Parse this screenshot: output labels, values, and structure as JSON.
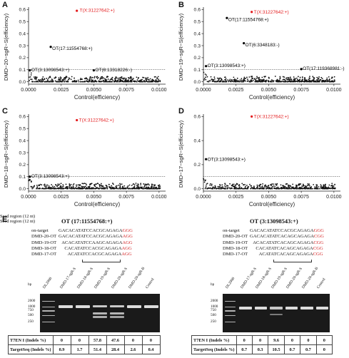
{
  "panels": {
    "A": {
      "letter": "A",
      "ylabel": "DMD−20−sgR−S(efficiency)",
      "xlabel": "Control(efficiency)"
    },
    "B": {
      "letter": "B",
      "ylabel": "DMD−19−sgR−S(efficiency)",
      "xlabel": "Control(efficiency)"
    },
    "C": {
      "letter": "C",
      "ylabel": "DMD−18−sgR−S(efficiency)",
      "xlabel": "Control(efficiency)"
    },
    "D": {
      "letter": "D",
      "ylabel": "DMD−17−sgR−S(efficiency)",
      "xlabel": "Control(efficiency)"
    }
  },
  "chart_data": [
    {
      "type": "scatter",
      "panel": "A",
      "xlim": [
        0,
        0.0105
      ],
      "ylim": [
        -0.02,
        0.62
      ],
      "xticks": [
        "0.0000",
        "0.0025",
        "0.0050",
        "0.0075",
        "0.0100"
      ],
      "xtick_values": [
        0,
        0.0025,
        0.005,
        0.0075,
        0.01
      ],
      "yticks": [
        "0.0",
        "0.1",
        "0.2",
        "0.3",
        "0.4",
        "0.5",
        "0.6"
      ],
      "ytick_values": [
        0,
        0.1,
        0.2,
        0.3,
        0.4,
        0.5,
        0.6
      ],
      "threshold": 0.1,
      "highlight": [
        {
          "x": 0.0037,
          "y": 0.59,
          "label": "T(X:31227642:+)",
          "color": "#e31a1c"
        },
        {
          "x": 0.0017,
          "y": 0.29,
          "label": "OT(17:11554768:+)",
          "color": "#000000"
        },
        {
          "x": 0.0001,
          "y": 0.095,
          "label": "OT(3:13098543:+)",
          "color": "#000000"
        },
        {
          "x": 0.005,
          "y": 0.095,
          "label": "OT(8:13318226:-)",
          "color": "#000000"
        }
      ]
    },
    {
      "type": "scatter",
      "panel": "B",
      "xlim": [
        0,
        0.0105
      ],
      "ylim": [
        -0.02,
        0.62
      ],
      "xticks": [
        "0.0000",
        "0.0025",
        "0.0050",
        "0.0075",
        "0.0100"
      ],
      "xtick_values": [
        0,
        0.0025,
        0.005,
        0.0075,
        0.01
      ],
      "yticks": [
        "0.0",
        "0.1",
        "0.2",
        "0.3",
        "0.4",
        "0.5",
        "0.6"
      ],
      "ytick_values": [
        0,
        0.1,
        0.2,
        0.3,
        0.4,
        0.5,
        0.6
      ],
      "threshold": 0.1,
      "highlight": [
        {
          "x": 0.0037,
          "y": 0.58,
          "label": "T(X:31227642:+)",
          "color": "#e31a1c"
        },
        {
          "x": 0.0018,
          "y": 0.53,
          "label": "OT(17:11554768:+)",
          "color": "#000000"
        },
        {
          "x": 0.0031,
          "y": 0.32,
          "label": "OT(6:3348183:-)",
          "color": "#000000"
        },
        {
          "x": 0.0002,
          "y": 0.13,
          "label": "OT(3:13098543:+)",
          "color": "#000000"
        },
        {
          "x": 0.0075,
          "y": 0.105,
          "label": "OT(17:119368981:-)",
          "color": "#000000"
        }
      ]
    },
    {
      "type": "scatter",
      "panel": "C",
      "xlim": [
        0,
        0.0105
      ],
      "ylim": [
        -0.02,
        0.62
      ],
      "xticks": [
        "0.0000",
        "0.0025",
        "0.0050",
        "0.0075",
        "0.0100"
      ],
      "xtick_values": [
        0,
        0.0025,
        0.005,
        0.0075,
        0.01
      ],
      "yticks": [
        "0.0",
        "0.1",
        "0.2",
        "0.3",
        "0.4",
        "0.5",
        "0.6"
      ],
      "ytick_values": [
        0,
        0.1,
        0.2,
        0.3,
        0.4,
        0.5,
        0.6
      ],
      "threshold": 0.1,
      "highlight": [
        {
          "x": 0.0037,
          "y": 0.57,
          "label": "T(X:31227642:+)",
          "color": "#e31a1c"
        },
        {
          "x": 0.0001,
          "y": 0.1,
          "label": "OT(3:13098543:+)",
          "color": "#000000"
        }
      ]
    },
    {
      "type": "scatter",
      "panel": "D",
      "xlim": [
        0,
        0.0105
      ],
      "ylim": [
        -0.02,
        0.62
      ],
      "xticks": [
        "0.0000",
        "0.0025",
        "0.0050",
        "0.0075",
        "0.0100"
      ],
      "xtick_values": [
        0,
        0.0025,
        0.005,
        0.0075,
        0.01
      ],
      "yticks": [
        "0.0",
        "0.2",
        "0.4",
        "0.6"
      ],
      "ytick_values": [
        0,
        0.2,
        0.4,
        0.6
      ],
      "threshold": 0.1,
      "highlight": [
        {
          "x": 0.0037,
          "y": 0.6,
          "label": "T(X:31227642:+)",
          "color": "#e31a1c"
        },
        {
          "x": 0.0002,
          "y": 0.245,
          "label": "OT(3:13098543:+)",
          "color": "#000000"
        }
      ]
    }
  ],
  "section_e": {
    "letter": "E",
    "left": {
      "title": "OT (17:11554768:+)",
      "sequences": [
        {
          "label": "on-target",
          "black": "GACACATATCCACGCAGAGA",
          "red": "GGG"
        },
        {
          "label": "DMD-20-OT",
          "black": "GACACATATCCACGCAGAGA",
          "red": "AGG"
        },
        {
          "label": "DMD-19-OT",
          "black": "ACACATATCCAAGCAGAGA",
          "red": "AGG"
        },
        {
          "label": "DMD-18-OT",
          "black": "CACATATCCACGCAGAGA",
          "red": "AGG"
        },
        {
          "label": "DMD-17-OT",
          "black": "ACATATCCACGCAGAGA",
          "red": "AGG"
        }
      ],
      "seed_text": "Seed region (12 nt)",
      "bp_label": "bp",
      "bp_marks": [
        "2000",
        "1000",
        "750",
        "500",
        "250"
      ],
      "lanes": [
        "DL2000",
        "DMD-17-sgR-S",
        "DMD-18-sgR-S",
        "DMD-19-sgR-S",
        "DMD-20-sgR-S",
        "DMD-20-sgR-B",
        "Control"
      ],
      "t7_label": "T7EN I (Indels %)",
      "t7_values": [
        "0",
        "0",
        "57.8",
        "47.6",
        "0",
        "0"
      ],
      "ts_label": "TargetSeq (Indels %)",
      "ts_values": [
        "0.9",
        "1.7",
        "51.4",
        "28.4",
        "2.6",
        "0.4"
      ]
    },
    "right": {
      "title": "OT (3:13098543:+)",
      "sequences": [
        {
          "label": "on-target",
          "black": "GACACATATCCACGCAGAGA",
          "red": "GGG"
        },
        {
          "label": "DMD-20-OT",
          "black": "GACACATATCACAGCAGAGA",
          "red": "CGG"
        },
        {
          "label": "DMD-19-OT",
          "black": "ACACATATCACAGCAGAGA",
          "red": "CGG"
        },
        {
          "label": "DMD-18-OT",
          "black": "CACATATCACAGCAGAGA",
          "red": "CGG"
        },
        {
          "label": "DMD-17-OT",
          "black": "ACATATCACAGCAGAGA",
          "red": "CGG"
        }
      ],
      "seed_text": "Seed region (12 nt)",
      "bp_label": "bp",
      "bp_marks": [
        "2000",
        "1000",
        "750",
        "500",
        "250"
      ],
      "lanes": [
        "DL2000",
        "DMD-17-sgR-S",
        "DMD-18-sgR-S",
        "DMD-19-sgR-S",
        "DMD-20-sgR-S",
        "DMD-20-sgR-B",
        "Control"
      ],
      "t7_label": "T7EN I (Indels %)",
      "t7_values": [
        "0",
        "0",
        "9.6",
        "0",
        "0",
        "0"
      ],
      "ts_label": "TargetSeq (Indels %)",
      "ts_values": [
        "0.7",
        "0.3",
        "10.5",
        "0.7",
        "0.7",
        "0"
      ]
    }
  }
}
